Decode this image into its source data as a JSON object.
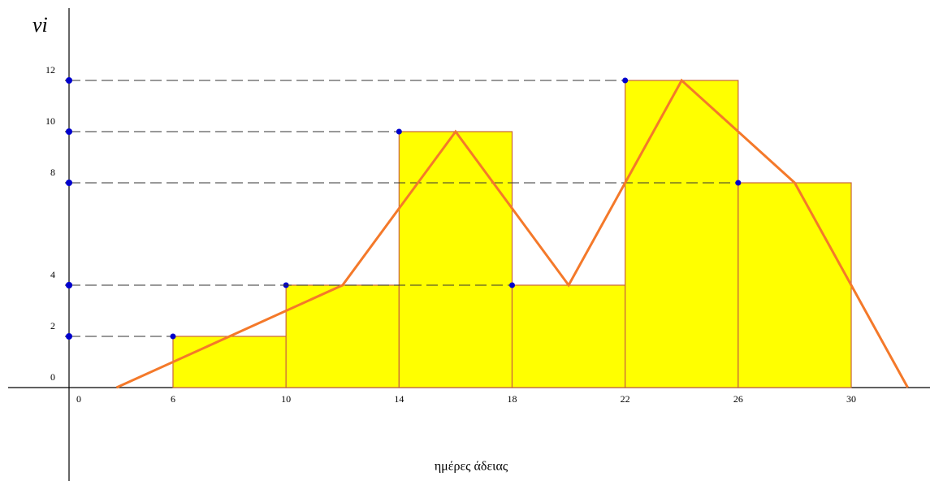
{
  "chart_data": {
    "type": "histogram",
    "y_label": "νi",
    "x_label": "ημέρες άδειας",
    "bins": [
      6,
      10,
      14,
      18,
      22,
      26,
      30
    ],
    "values": [
      2,
      4,
      10,
      4,
      12,
      8
    ],
    "color": "#ffff00",
    "edge_color": "#c8643c",
    "polygon": {
      "x": [
        4,
        8,
        12,
        16,
        20,
        24,
        28,
        32
      ],
      "values": [
        0,
        2,
        4,
        10,
        4,
        12,
        8,
        0
      ],
      "color": "#f4792a"
    },
    "xlim": [
      3.5,
      32.5
    ],
    "ylim": [
      0,
      15
    ],
    "axis_break": true,
    "xticks": [
      0,
      6,
      10,
      14,
      18,
      22,
      26,
      30
    ],
    "yticks": [
      0,
      2,
      4,
      8,
      10,
      12
    ],
    "guide_color": "#0000cc"
  }
}
